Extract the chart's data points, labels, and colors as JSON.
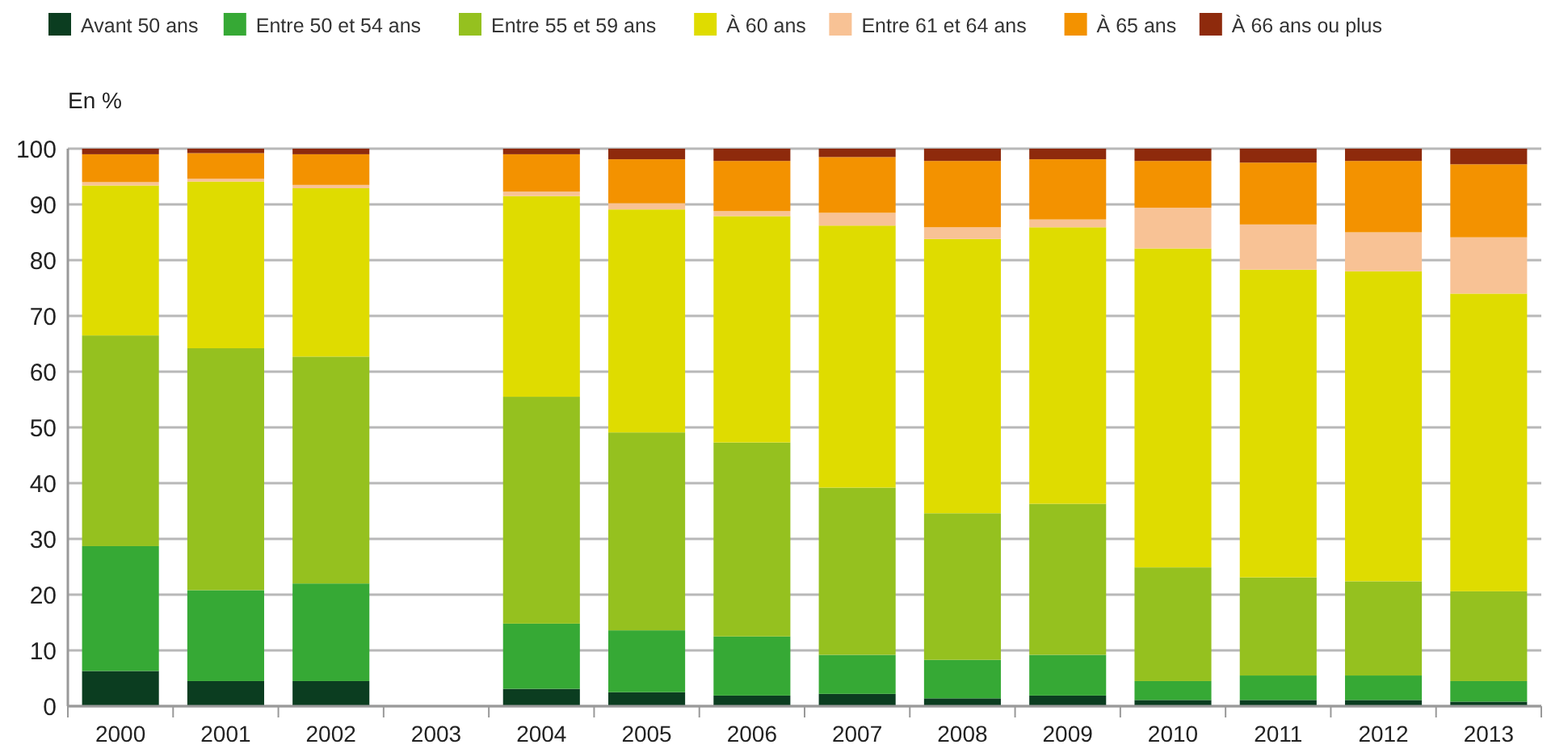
{
  "chart_data": {
    "type": "bar",
    "stacked": true,
    "ylabel": "En %",
    "categories": [
      "2000",
      "2001",
      "2002",
      "2003",
      "2004",
      "2005",
      "2006",
      "2007",
      "2008",
      "2009",
      "2010",
      "2011",
      "2012",
      "2013"
    ],
    "ylim": [
      0,
      100
    ],
    "yticks": [
      0,
      10,
      20,
      30,
      40,
      50,
      60,
      70,
      80,
      90,
      100
    ],
    "grid": "y",
    "legend": "top",
    "series": [
      {
        "name": "Avant 50 ans",
        "color": "#0b3d20",
        "values": [
          6.3,
          4.5,
          4.5,
          null,
          3.1,
          2.5,
          1.9,
          2.2,
          1.4,
          1.9,
          1.1,
          1.1,
          1.1,
          0.8
        ]
      },
      {
        "name": "Entre 50 et 54 ans",
        "color": "#36a935",
        "values": [
          22.4,
          16.3,
          17.5,
          null,
          11.7,
          11.1,
          10.6,
          7.0,
          6.9,
          7.3,
          3.4,
          4.4,
          4.4,
          3.7
        ]
      },
      {
        "name": "Entre 55 et 59 ans",
        "color": "#95c11f",
        "values": [
          37.8,
          43.4,
          40.7,
          null,
          40.7,
          35.5,
          34.8,
          30.0,
          26.3,
          27.1,
          20.4,
          17.6,
          16.9,
          16.1
        ]
      },
      {
        "name": "À 60 ans",
        "color": "#dfdc00",
        "values": [
          26.9,
          29.9,
          30.2,
          null,
          36.0,
          40.0,
          40.6,
          47.0,
          49.2,
          49.6,
          57.2,
          55.2,
          55.6,
          53.4
        ]
      },
      {
        "name": "Entre 61 et 64 ans",
        "color": "#f8c295",
        "values": [
          0.6,
          0.5,
          0.6,
          null,
          0.8,
          1.1,
          0.9,
          2.3,
          2.1,
          1.4,
          7.3,
          8.1,
          7.0,
          10.1
        ]
      },
      {
        "name": "À 65 ans",
        "color": "#f39200",
        "values": [
          5.0,
          4.6,
          5.5,
          null,
          6.7,
          7.9,
          9.0,
          10.0,
          11.9,
          10.8,
          8.4,
          11.1,
          12.8,
          13.1
        ]
      },
      {
        "name": "À 66 ans ou plus",
        "color": "#8e2a0c",
        "values": [
          1.0,
          0.8,
          1.0,
          null,
          1.0,
          1.9,
          2.2,
          1.5,
          2.2,
          1.9,
          2.2,
          2.5,
          2.2,
          2.8
        ]
      }
    ]
  }
}
